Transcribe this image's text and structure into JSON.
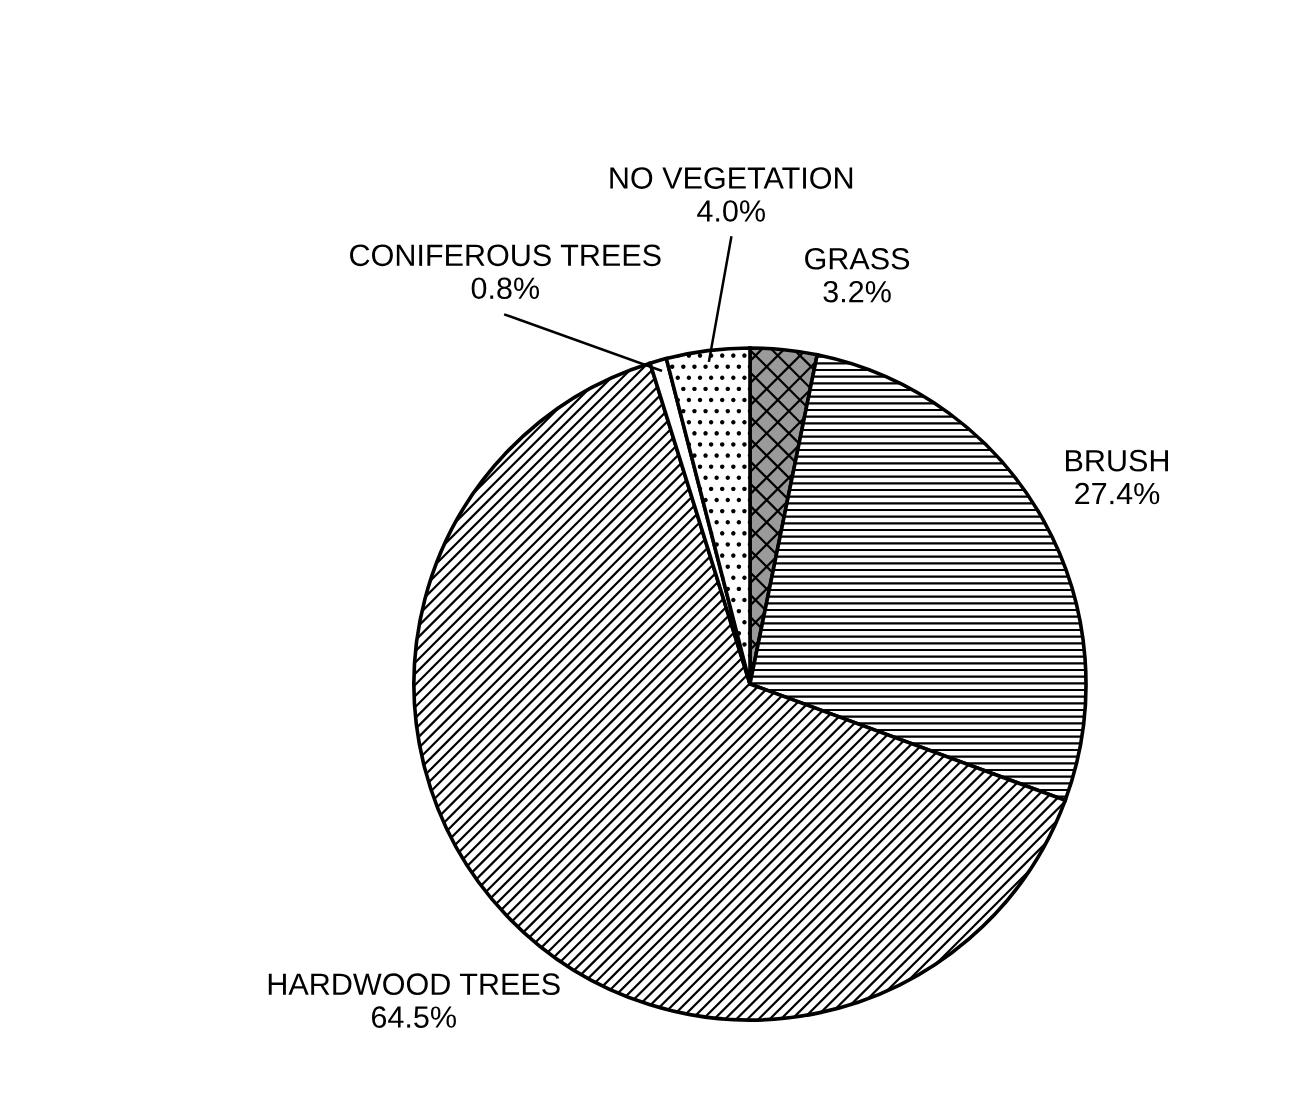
{
  "chart_data": {
    "type": "pie",
    "categories": [
      "GRASS",
      "BRUSH",
      "HARDWOOD TREES",
      "CONIFEROUS TREES",
      "NO VEGETATION"
    ],
    "values": [
      3.2,
      27.4,
      64.5,
      0.8,
      4.0
    ],
    "value_labels": [
      "3.2%",
      "27.4%",
      "64.5%",
      "0.8%",
      "4.0%"
    ],
    "colors": [
      "#9a9a9a",
      "#ffffff",
      "#ffffff",
      "#ffffff",
      "#ffffff"
    ],
    "legend": false
  }
}
